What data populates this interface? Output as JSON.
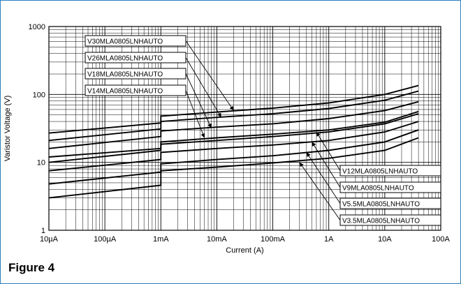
{
  "figure": {
    "caption": "Figure 4"
  },
  "chart_data": {
    "type": "line",
    "title": "",
    "xlabel": "Current (A)",
    "ylabel": "Varistor Voltage (V)",
    "x_scale": "log",
    "y_scale": "log",
    "xlim": [
      1e-05,
      100
    ],
    "ylim": [
      1,
      1000
    ],
    "grid": true,
    "x_ticks": [
      {
        "value": 1e-05,
        "label": "10µA"
      },
      {
        "value": 0.0001,
        "label": "100µA"
      },
      {
        "value": 0.001,
        "label": "1mA"
      },
      {
        "value": 0.01,
        "label": "10mA"
      },
      {
        "value": 0.1,
        "label": "100mA"
      },
      {
        "value": 1,
        "label": "1A"
      },
      {
        "value": 10,
        "label": "10A"
      },
      {
        "value": 100,
        "label": "100A"
      }
    ],
    "y_ticks": [
      {
        "value": 1,
        "label": "1"
      },
      {
        "value": 10,
        "label": "10"
      },
      {
        "value": 100,
        "label": "100"
      },
      {
        "value": 1000,
        "label": "1000"
      }
    ],
    "series": [
      {
        "name": "V30MLA0805LNHAUTO",
        "x": [
          1e-05,
          0.001,
          0.001,
          0.01,
          0.1,
          1,
          10,
          40
        ],
        "y": [
          27,
          38,
          48,
          55,
          63,
          75,
          100,
          135
        ]
      },
      {
        "name": "V26MLA0805LNHAUTO",
        "x": [
          1e-05,
          0.001,
          0.001,
          0.01,
          0.1,
          1,
          10,
          40
        ],
        "y": [
          21,
          31,
          40,
          46,
          52,
          62,
          82,
          112
        ]
      },
      {
        "name": "V18MLA0805LNHAUTO",
        "x": [
          1e-05,
          0.001,
          0.001,
          0.01,
          0.1,
          1,
          10,
          40
        ],
        "y": [
          16,
          24,
          29,
          33,
          37,
          44,
          58,
          78
        ]
      },
      {
        "name": "V14MLA0805LNHAUTO",
        "x": [
          1e-05,
          0.001,
          0.001,
          0.01,
          0.1,
          1,
          10,
          40
        ],
        "y": [
          12,
          16,
          20,
          23,
          26,
          30,
          39,
          56
        ]
      },
      {
        "name": "V12MLA0805LNHAUTO",
        "x": [
          1e-05,
          0.001,
          0.001,
          0.01,
          0.1,
          1,
          10,
          40
        ],
        "y": [
          10,
          15,
          18.5,
          21,
          24,
          28,
          37,
          52
        ]
      },
      {
        "name": "V9MLA0805LNHAUTO",
        "x": [
          1e-05,
          0.001,
          0.001,
          0.01,
          0.1,
          1,
          10,
          40
        ],
        "y": [
          7.5,
          11,
          14,
          16,
          18,
          21,
          28,
          40
        ]
      },
      {
        "name": "V5.5MLA0805LNHAUTO",
        "x": [
          1e-05,
          0.001,
          0.001,
          0.01,
          0.1,
          1,
          10,
          40
        ],
        "y": [
          4.8,
          7.2,
          9.5,
          11,
          12.5,
          15,
          20,
          30
        ]
      },
      {
        "name": "V3.5MLA0805LNHAUTO",
        "x": [
          1e-05,
          0.001,
          0.001,
          0.01,
          0.1,
          1,
          10,
          40
        ],
        "y": [
          3,
          4.6,
          7.5,
          8.5,
          9.8,
          11.5,
          15,
          23
        ]
      }
    ],
    "annotations": [
      {
        "label": "V30MLA0805LNHAUTO",
        "points_to": {
          "x": 0.02,
          "y": 58
        }
      },
      {
        "label": "V26MLA0805LNHAUTO",
        "points_to": {
          "x": 0.012,
          "y": 46
        }
      },
      {
        "label": "V18MLA0805LNHAUTO",
        "points_to": {
          "x": 0.008,
          "y": 32
        }
      },
      {
        "label": "V14MLA0805LNHAUTO",
        "points_to": {
          "x": 0.006,
          "y": 23
        }
      },
      {
        "label": "V12MLA0805LNHAUTO",
        "points_to": {
          "x": 0.6,
          "y": 28
        }
      },
      {
        "label": "V9MLA0805LNHAUTO",
        "points_to": {
          "x": 0.5,
          "y": 20
        }
      },
      {
        "label": "V5.5MLA0805LNHAUTO",
        "points_to": {
          "x": 0.4,
          "y": 14
        }
      },
      {
        "label": "V3.5MLA0805LNHAUTO",
        "points_to": {
          "x": 0.3,
          "y": 10
        }
      }
    ]
  }
}
